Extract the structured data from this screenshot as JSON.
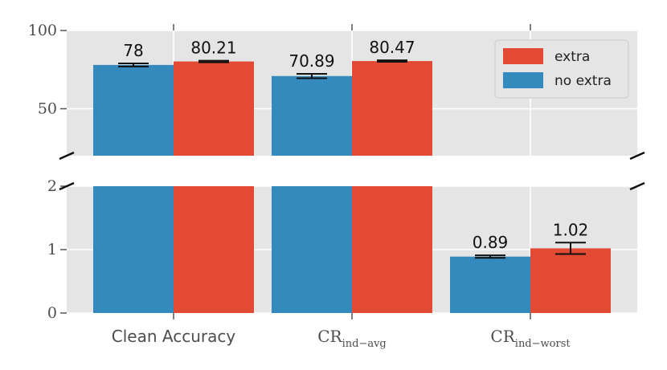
{
  "chart_data": {
    "type": "bar",
    "categories": [
      {
        "main": "Clean Accuracy",
        "sub": ""
      },
      {
        "main": "CR",
        "sub": "ind−avg"
      },
      {
        "main": "CR",
        "sub": "ind−worst"
      }
    ],
    "series": [
      {
        "name": "no extra",
        "color": "#348abd",
        "values": [
          78,
          70.89,
          0.89
        ],
        "errors": [
          1.0,
          1.4,
          0.02
        ],
        "labels": [
          "78",
          "70.89",
          "0.89"
        ]
      },
      {
        "name": "extra",
        "color": "#e24a33",
        "values": [
          80.21,
          80.47,
          1.02
        ],
        "errors": [
          0.5,
          0.5,
          0.09
        ],
        "labels": [
          "80.21",
          "80.47",
          "1.02"
        ]
      }
    ],
    "upper_panel": {
      "ylim": [
        20,
        100
      ],
      "yticks": [
        "50",
        "100"
      ],
      "tick_values": [
        50,
        100
      ]
    },
    "lower_panel": {
      "ylim": [
        0,
        2
      ],
      "yticks": [
        "0",
        "1",
        "2"
      ],
      "tick_values": [
        0,
        1,
        2
      ]
    },
    "broken_axis": true,
    "grid": true,
    "background": "#e5e5e5",
    "legend": {
      "placement": "top-right",
      "entries": [
        "extra",
        "no extra"
      ]
    }
  }
}
